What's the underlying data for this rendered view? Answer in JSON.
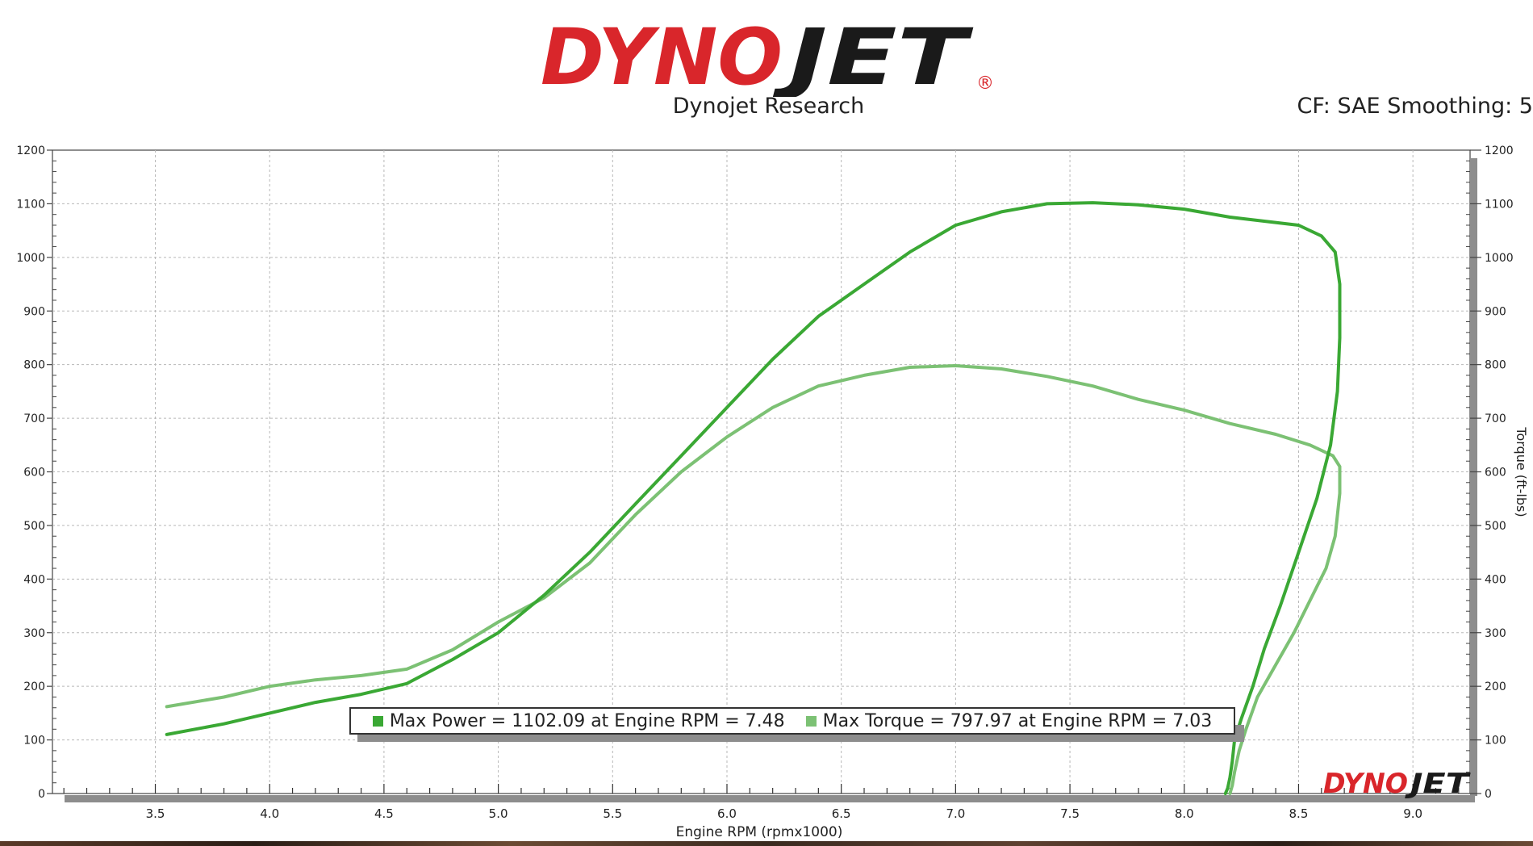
{
  "header": {
    "logo_text_red": "DYNO",
    "logo_text_black": "JET",
    "logo_registered": "®",
    "subtitle": "Dynojet Research",
    "cf_info": "CF: SAE Smoothing: 5",
    "colors": {
      "logo_red": "#d9262b",
      "logo_black": "#1a1a1a"
    }
  },
  "legend": {
    "power_label": "Max Power = 1102.09 at Engine RPM = 7.48",
    "torque_label": "Max Torque = 797.97 at Engine RPM = 7.03"
  },
  "watermark": {
    "red": "DYNO",
    "black": "JET"
  },
  "chart_data": {
    "type": "line",
    "title": "",
    "xlabel": "Engine RPM (rpmx1000)",
    "ylabel": "",
    "y2label": "Torque (ft-lbs)",
    "xlim": [
      3.05,
      9.25
    ],
    "ylim": [
      0,
      1200
    ],
    "x_ticks": [
      3.5,
      4.0,
      4.5,
      5.0,
      5.5,
      6.0,
      6.5,
      7.0,
      7.5,
      8.0,
      8.5,
      9.0
    ],
    "x_tick_labels": [
      "3.5",
      "4.0",
      "4.5",
      "5.0",
      "5.5",
      "6.0",
      "6.5",
      "7.0",
      "7.5",
      "8.0",
      "8.5",
      "9.0"
    ],
    "y_ticks": [
      0,
      100,
      200,
      300,
      400,
      500,
      600,
      700,
      800,
      900,
      1000,
      1100,
      1200
    ],
    "y_tick_labels": [
      "0",
      "100",
      "200",
      "300",
      "400",
      "500",
      "600",
      "700",
      "800",
      "900",
      "1000",
      "1100",
      "1200"
    ],
    "grid": true,
    "legend_position": "bottom-center",
    "series": [
      {
        "name": "Power",
        "color": "#3aa834",
        "x": [
          3.55,
          3.8,
          4.0,
          4.2,
          4.4,
          4.6,
          4.8,
          5.0,
          5.2,
          5.4,
          5.6,
          5.8,
          6.0,
          6.2,
          6.4,
          6.6,
          6.8,
          7.0,
          7.2,
          7.4,
          7.6,
          7.8,
          8.0,
          8.2,
          8.5,
          8.6,
          8.66,
          8.68,
          8.68,
          8.67,
          8.64,
          8.58,
          8.5,
          8.42,
          8.35,
          8.3,
          8.25,
          8.22,
          8.21,
          8.2,
          8.19,
          8.18
        ],
        "y": [
          110,
          130,
          150,
          170,
          185,
          205,
          250,
          300,
          370,
          450,
          540,
          630,
          720,
          810,
          890,
          950,
          1010,
          1060,
          1085,
          1100,
          1102,
          1098,
          1090,
          1075,
          1060,
          1040,
          1010,
          950,
          850,
          750,
          650,
          550,
          450,
          350,
          270,
          200,
          140,
          100,
          60,
          30,
          10,
          0
        ]
      },
      {
        "name": "Torque",
        "color": "#7cc174",
        "x": [
          3.55,
          3.8,
          4.0,
          4.2,
          4.4,
          4.6,
          4.8,
          5.0,
          5.2,
          5.4,
          5.6,
          5.8,
          6.0,
          6.2,
          6.4,
          6.6,
          6.8,
          7.0,
          7.2,
          7.4,
          7.6,
          7.8,
          8.0,
          8.2,
          8.4,
          8.55,
          8.65,
          8.68,
          8.68,
          8.66,
          8.62,
          8.55,
          8.48,
          8.4,
          8.32,
          8.27,
          8.24,
          8.22,
          8.21,
          8.2
        ],
        "y": [
          162,
          180,
          200,
          212,
          220,
          232,
          268,
          320,
          365,
          430,
          520,
          600,
          665,
          720,
          760,
          780,
          795,
          798,
          792,
          778,
          760,
          735,
          715,
          690,
          670,
          650,
          630,
          610,
          560,
          480,
          420,
          360,
          300,
          240,
          180,
          120,
          80,
          40,
          15,
          0
        ]
      }
    ]
  }
}
